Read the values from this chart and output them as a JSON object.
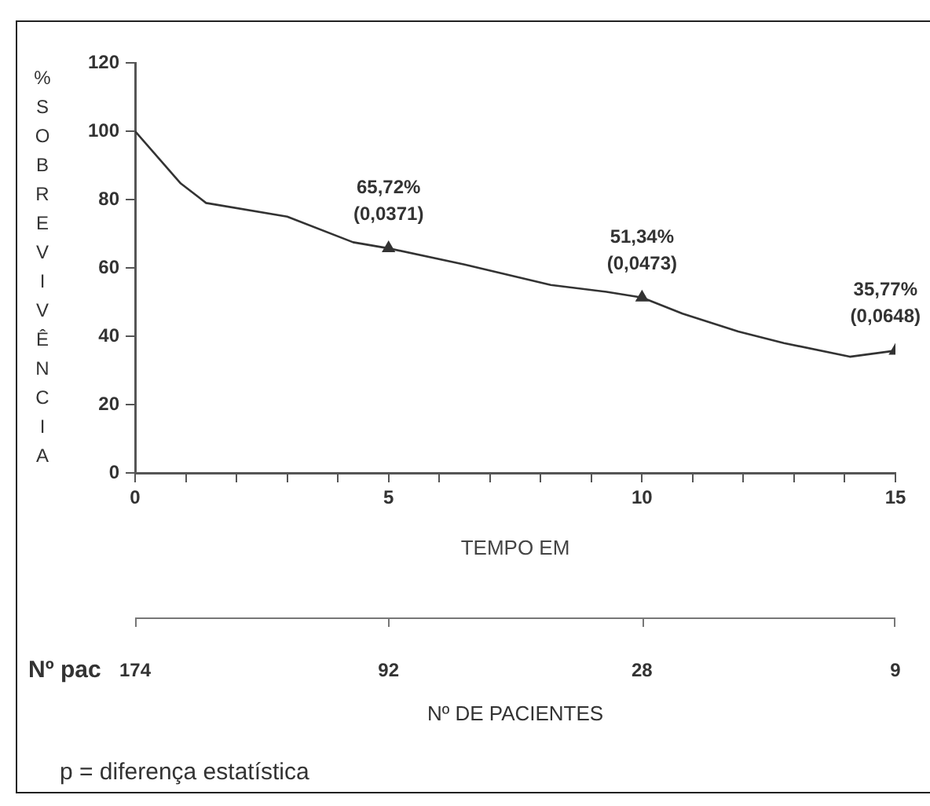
{
  "chart_data": {
    "type": "line",
    "ylabel": "%SOBREVIVÊNCIA",
    "xlabel": "TEMPO EM",
    "xlim": [
      0,
      15
    ],
    "xticks": [
      0,
      {
        "value": 1,
        "label": null
      },
      {
        "value": 2,
        "label": null
      },
      {
        "value": 3,
        "label": null
      },
      {
        "value": 4,
        "label": null
      },
      5,
      {
        "value": 6,
        "label": null
      },
      {
        "value": 7,
        "label": null
      },
      {
        "value": 8,
        "label": null
      },
      {
        "value": 9,
        "label": null
      },
      10,
      {
        "value": 11,
        "label": null
      },
      {
        "value": 12,
        "label": null
      },
      {
        "value": 13,
        "label": null
      },
      {
        "value": 14,
        "label": null
      },
      15
    ],
    "ylim": [
      0,
      120
    ],
    "yticks": [
      0,
      20,
      40,
      60,
      80,
      100,
      120
    ],
    "grid": false,
    "legend": false,
    "series": [
      {
        "marker": "none",
        "color": "#333333",
        "x": [
          0,
          0.9,
          1.4,
          3.0,
          4.3,
          5,
          6.5,
          8.2,
          9.3,
          10,
          10.8,
          11.9,
          12.8,
          14.1,
          15
        ],
        "values": [
          100,
          84.7,
          79,
          75,
          67.5,
          65.72,
          61,
          55,
          53,
          51.34,
          46.6,
          41.4,
          38,
          34,
          35.77
        ]
      },
      {
        "type": "scatter",
        "marker": "triangle",
        "color": "#333333",
        "x": [
          5,
          10,
          15
        ],
        "values": [
          65.72,
          51.34,
          35.77
        ]
      }
    ],
    "annotations": [
      {
        "text": "65,72% (0,0371)",
        "x": 5,
        "y": 65.72
      },
      {
        "text": "51,34% (0,0473)",
        "x": 10,
        "y": 51.34
      },
      {
        "text": "35,77% (0,0648)",
        "x": 15,
        "y": 35.77
      },
      "174",
      "92",
      "28",
      "9",
      "Nº pac",
      "Nº DE PACIENTES",
      "p = diferença estatística"
    ]
  }
}
